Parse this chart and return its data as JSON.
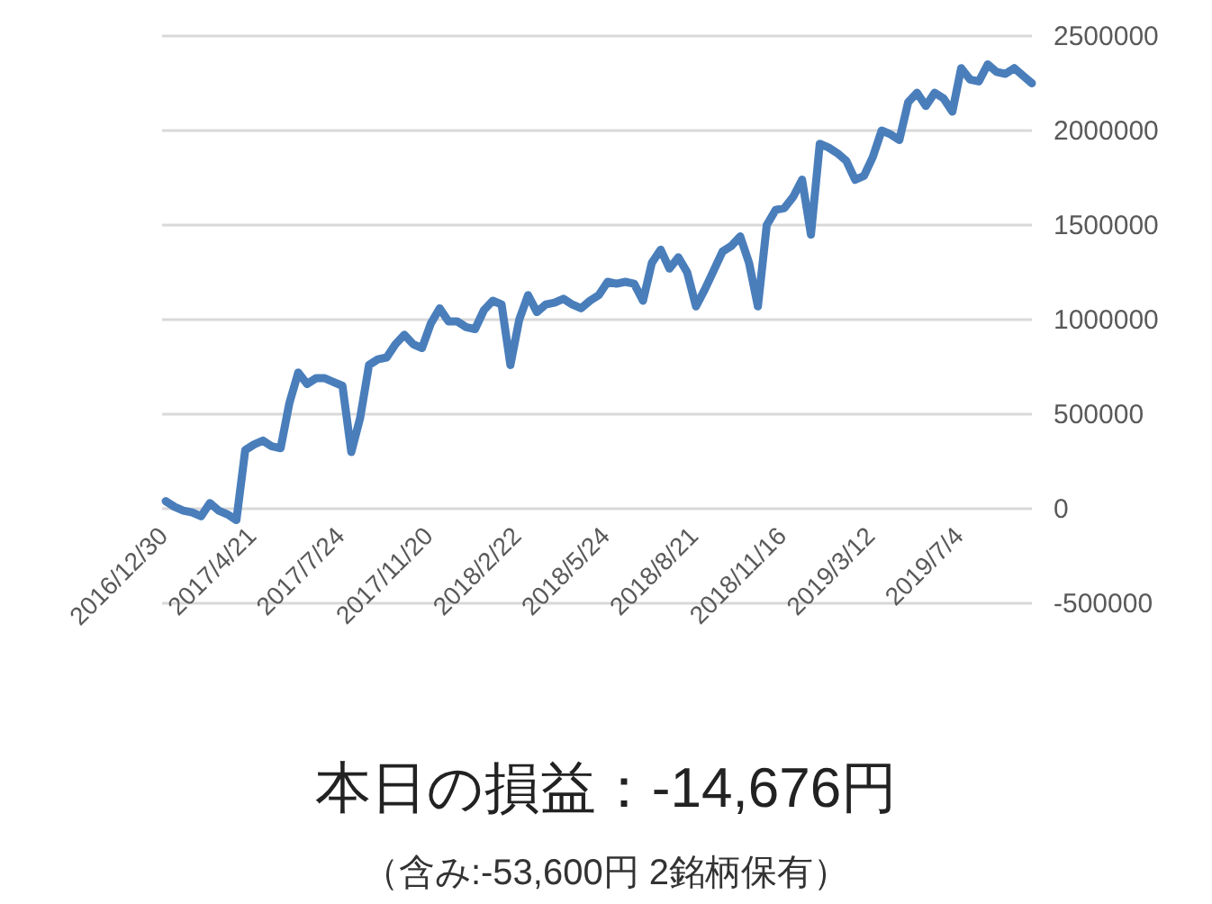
{
  "chart_data": {
    "type": "line",
    "title": "本日の損益：-14,676円",
    "subtitle": "（含み:-53,600円  2銘柄保有）",
    "categories": [
      "2016/12/30",
      null,
      null,
      null,
      null,
      null,
      null,
      null,
      null,
      null,
      "2017/4/21",
      null,
      null,
      null,
      null,
      null,
      null,
      null,
      null,
      null,
      "2017/7/24",
      null,
      null,
      null,
      null,
      null,
      null,
      null,
      null,
      null,
      "2017/11/20",
      null,
      null,
      null,
      null,
      null,
      null,
      null,
      null,
      null,
      "2018/2/22",
      null,
      null,
      null,
      null,
      null,
      null,
      null,
      null,
      null,
      "2018/5/24",
      null,
      null,
      null,
      null,
      null,
      null,
      null,
      null,
      null,
      "2018/8/21",
      null,
      null,
      null,
      null,
      null,
      null,
      null,
      null,
      null,
      "2018/11/16",
      null,
      null,
      null,
      null,
      null,
      null,
      null,
      null,
      null,
      "2019/3/12",
      null,
      null,
      null,
      null,
      null,
      null,
      null,
      null,
      null,
      "2019/7/4",
      null,
      null,
      null,
      null,
      null,
      null,
      null,
      null
    ],
    "series": [
      {
        "color": "#4a7ebb",
        "values": [
          40000,
          10000,
          -10000,
          -20000,
          -40000,
          30000,
          -10000,
          -30000,
          -60000,
          310000,
          340000,
          360000,
          330000,
          320000,
          560000,
          720000,
          660000,
          690000,
          690000,
          670000,
          650000,
          300000,
          480000,
          760000,
          790000,
          800000,
          870000,
          920000,
          870000,
          850000,
          980000,
          1060000,
          990000,
          990000,
          960000,
          950000,
          1050000,
          1100000,
          1080000,
          760000,
          1000000,
          1130000,
          1040000,
          1080000,
          1090000,
          1110000,
          1080000,
          1060000,
          1100000,
          1130000,
          1200000,
          1190000,
          1200000,
          1190000,
          1100000,
          1300000,
          1370000,
          1270000,
          1330000,
          1250000,
          1070000,
          1160000,
          1260000,
          1360000,
          1390000,
          1440000,
          1300000,
          1070000,
          1500000,
          1580000,
          1590000,
          1650000,
          1740000,
          1450000,
          1930000,
          1910000,
          1880000,
          1840000,
          1740000,
          1760000,
          1860000,
          2000000,
          1980000,
          1950000,
          2150000,
          2200000,
          2130000,
          2200000,
          2170000,
          2100000,
          2330000,
          2270000,
          2260000,
          2350000,
          2310000,
          2300000,
          2330000,
          2290000,
          2250000
        ]
      }
    ],
    "ylim": [
      -500000,
      2500000
    ],
    "yticks": [
      -500000,
      0,
      500000,
      1000000,
      1500000,
      2000000,
      2500000
    ],
    "grid": "y",
    "line_style": "solid"
  }
}
